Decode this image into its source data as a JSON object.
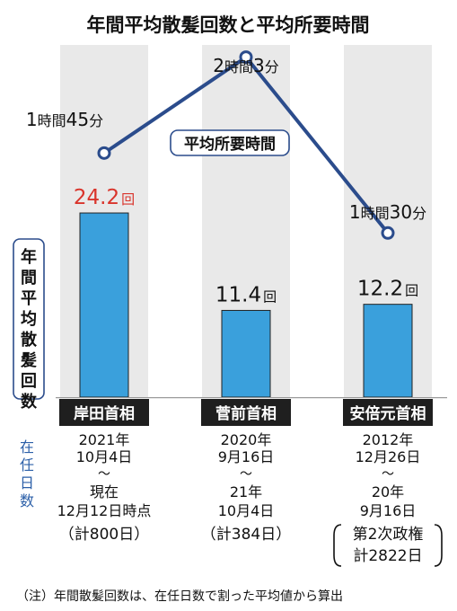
{
  "chart_data": {
    "type": "bar",
    "title": "年間平均散髪回数と平均所要時間",
    "ylabel": "年間平均散髪回数",
    "categories": [
      "岸田首相",
      "菅前首相",
      "安倍元首相"
    ],
    "values": [
      24.2,
      11.4,
      12.2
    ],
    "value_labels": [
      "24.2",
      "11.4",
      "12.2"
    ],
    "value_unit": "回",
    "ylim": [
      0,
      30
    ],
    "bar_color": "#3aa0dc",
    "highlight_color": "#d9342b",
    "line_series": {
      "name": "平均所要時間",
      "values_minutes": [
        105,
        123,
        90
      ],
      "labels": [
        [
          {
            "n": "1",
            "u": "時間"
          },
          {
            "n": "45",
            "u": "分"
          }
        ],
        [
          {
            "n": "2",
            "u": "時間"
          },
          {
            "n": "3",
            "u": "分"
          }
        ],
        [
          {
            "n": "1",
            "u": "時間"
          },
          {
            "n": "30",
            "u": "分"
          }
        ]
      ],
      "ylim": [
        80,
        130
      ],
      "color": "#2b4c8c"
    },
    "tenure_label": "在任日数",
    "tenure": [
      [
        "2021年",
        "10月4日",
        "～",
        "現在",
        "12月12日時点",
        "（計800日）"
      ],
      [
        "2020年",
        "9月16日",
        "～",
        "21年",
        "10月4日",
        "（計384日）"
      ],
      [
        "2012年",
        "12月26日",
        "～",
        "20年",
        "9月16日",
        "第2次政権",
        "計2822日"
      ]
    ],
    "note": "（注）年間散髪回数は、在任日数で割った平均値から算出"
  }
}
